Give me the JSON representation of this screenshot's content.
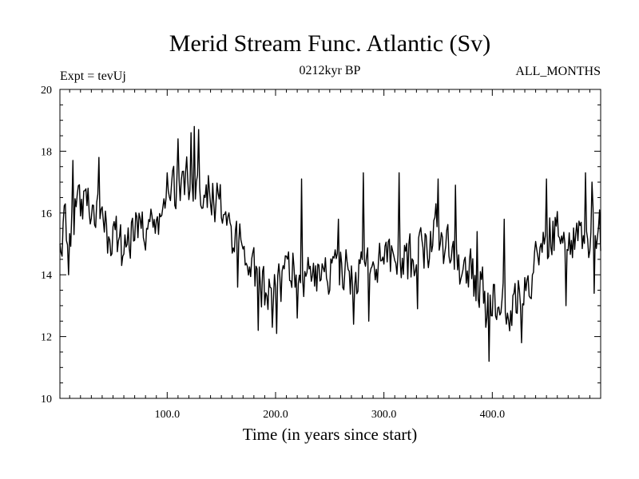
{
  "chart_data": {
    "type": "line",
    "title": "Merid Stream Func. Atlantic (Sv)",
    "left_label": "Expt = tevUj",
    "center_label": "0212kyr BP",
    "right_label": "ALL_MONTHS",
    "xlabel": "Time (in years since start)",
    "ylabel": "",
    "xlim": [
      1,
      500
    ],
    "ylim": [
      10,
      20
    ],
    "xticks": [
      100,
      200,
      300,
      400
    ],
    "xtick_labels": [
      "100.0",
      "200.0",
      "300.0",
      "400.0"
    ],
    "yticks": [
      10,
      12,
      14,
      16,
      18,
      20
    ],
    "ytick_labels": [
      "10",
      "12",
      "14",
      "16",
      "18",
      "20"
    ],
    "series": [
      {
        "name": "Merid Stream Func. Atlantic",
        "color": "#000000",
        "trend": [
          [
            1,
            15.3
          ],
          [
            10,
            15.6
          ],
          [
            20,
            16.2
          ],
          [
            30,
            16.0
          ],
          [
            40,
            15.6
          ],
          [
            50,
            15.1
          ],
          [
            60,
            15.1
          ],
          [
            70,
            15.4
          ],
          [
            80,
            15.6
          ],
          [
            90,
            15.9
          ],
          [
            100,
            16.3
          ],
          [
            110,
            16.9
          ],
          [
            120,
            17.0
          ],
          [
            130,
            17.0
          ],
          [
            140,
            16.6
          ],
          [
            150,
            16.1
          ],
          [
            160,
            15.4
          ],
          [
            170,
            14.7
          ],
          [
            180,
            14.0
          ],
          [
            190,
            13.6
          ],
          [
            200,
            13.6
          ],
          [
            210,
            13.9
          ],
          [
            220,
            14.0
          ],
          [
            230,
            13.8
          ],
          [
            240,
            14.0
          ],
          [
            250,
            14.2
          ],
          [
            260,
            14.1
          ],
          [
            270,
            14.0
          ],
          [
            280,
            14.2
          ],
          [
            290,
            14.2
          ],
          [
            300,
            14.3
          ],
          [
            310,
            14.4
          ],
          [
            320,
            14.4
          ],
          [
            330,
            14.5
          ],
          [
            340,
            15.0
          ],
          [
            350,
            15.2
          ],
          [
            360,
            14.7
          ],
          [
            370,
            14.3
          ],
          [
            380,
            14.0
          ],
          [
            390,
            13.6
          ],
          [
            400,
            13.1
          ],
          [
            410,
            13.0
          ],
          [
            420,
            13.1
          ],
          [
            430,
            13.5
          ],
          [
            440,
            14.5
          ],
          [
            450,
            15.3
          ],
          [
            460,
            15.5
          ],
          [
            470,
            15.3
          ],
          [
            480,
            15.4
          ],
          [
            490,
            15.2
          ],
          [
            500,
            15.3
          ]
        ],
        "noise_amplitude": 0.75,
        "extremes": [
          [
            1,
            15.0
          ],
          [
            3,
            14.6
          ],
          [
            9,
            14.0
          ],
          [
            13,
            17.7
          ],
          [
            27,
            16.8
          ],
          [
            37,
            17.8
          ],
          [
            58,
            14.3
          ],
          [
            80,
            14.8
          ],
          [
            100,
            17.3
          ],
          [
            110,
            18.4
          ],
          [
            122,
            18.6
          ],
          [
            125,
            18.8
          ],
          [
            129,
            18.7
          ],
          [
            160,
            14.7
          ],
          [
            165,
            13.6
          ],
          [
            184,
            12.2
          ],
          [
            197,
            12.3
          ],
          [
            201,
            12.1
          ],
          [
            216,
            14.7
          ],
          [
            220,
            12.6
          ],
          [
            224,
            17.1
          ],
          [
            250,
            13.5
          ],
          [
            258,
            15.8
          ],
          [
            272,
            12.4
          ],
          [
            281,
            17.3
          ],
          [
            286,
            12.5
          ],
          [
            314,
            17.3
          ],
          [
            331,
            12.9
          ],
          [
            348,
            16.3
          ],
          [
            350,
            17.1
          ],
          [
            366,
            16.9
          ],
          [
            386,
            15.4
          ],
          [
            394,
            12.3
          ],
          [
            397,
            11.2
          ],
          [
            411,
            15.8
          ],
          [
            420,
            13.4
          ],
          [
            427,
            11.8
          ],
          [
            450,
            17.1
          ],
          [
            468,
            13.0
          ],
          [
            482,
            15.7
          ],
          [
            486,
            17.3
          ],
          [
            492,
            17.0
          ],
          [
            494,
            13.4
          ],
          [
            499,
            16.1
          ]
        ],
        "values": []
      }
    ]
  }
}
